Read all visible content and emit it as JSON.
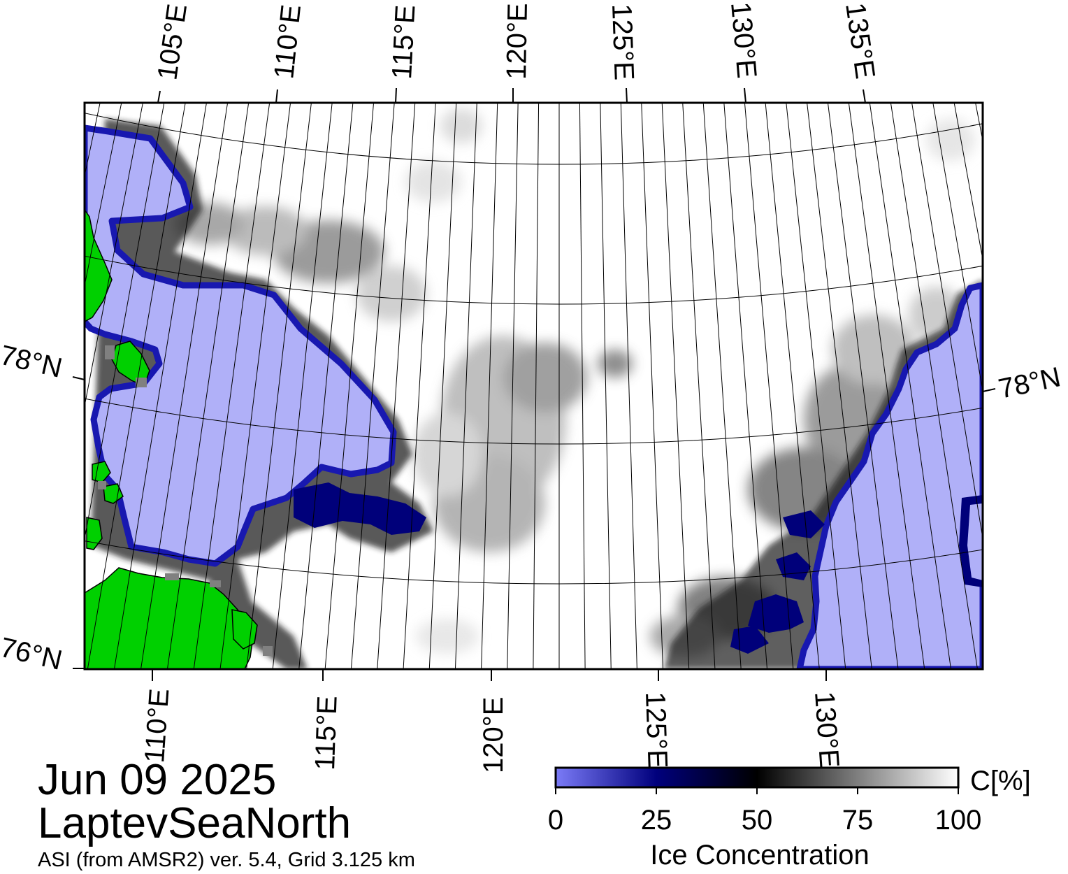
{
  "map": {
    "date": "Jun 09 2025",
    "region": "LaptevSeaNorth",
    "source": "ASI (from AMSR2) ver. 5.4,  Grid 3.125 km",
    "top_lon_labels": [
      "105°E",
      "110°E",
      "115°E",
      "120°E",
      "125°E",
      "130°E",
      "135°E"
    ],
    "bottom_lon_labels": [
      "110°E",
      "115°E",
      "120°E",
      "125°E",
      "130°E"
    ],
    "lat_labels": {
      "left_78": "78°N",
      "right_78": "78°N",
      "left_76": "76°N"
    },
    "colors": {
      "open_water": "#b0b0f8",
      "ice_edge": "#00007a",
      "land": "#00d000",
      "high_ice": "#ffffff",
      "coast_mask": "#808080"
    }
  },
  "colorbar": {
    "title": "Ice Concentration",
    "unit": "C[%]",
    "ticks": [
      "0",
      "25",
      "50",
      "75",
      "100"
    ],
    "range": [
      0,
      100
    ],
    "stops": [
      {
        "value": 0,
        "color": "#7b7bf7"
      },
      {
        "value": 25,
        "color": "#00007d"
      },
      {
        "value": 50,
        "color": "#000000"
      },
      {
        "value": 75,
        "color": "#7f7f7f"
      },
      {
        "value": 100,
        "color": "#ffffff"
      }
    ]
  }
}
